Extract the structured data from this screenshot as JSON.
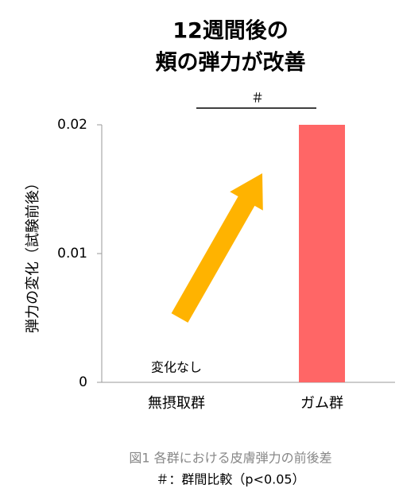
{
  "chart_data": {
    "type": "bar",
    "title": [
      "12週間後の",
      "頬の弾力が改善"
    ],
    "y_label": "弾力の変化（試験前後）",
    "categories": [
      "無摂取群",
      "ガム群"
    ],
    "values": [
      0,
      0.02
    ],
    "value_labels": [
      "変化なし",
      null
    ],
    "color": "#ff6666",
    "ylim": [
      0,
      0.02
    ],
    "yticks": [
      0,
      0.01,
      0.02
    ],
    "significance": "＃",
    "caption": [
      "図1 各群における皮膚弾力の前後差",
      "＃：群間比較（p<0.05）"
    ]
  }
}
